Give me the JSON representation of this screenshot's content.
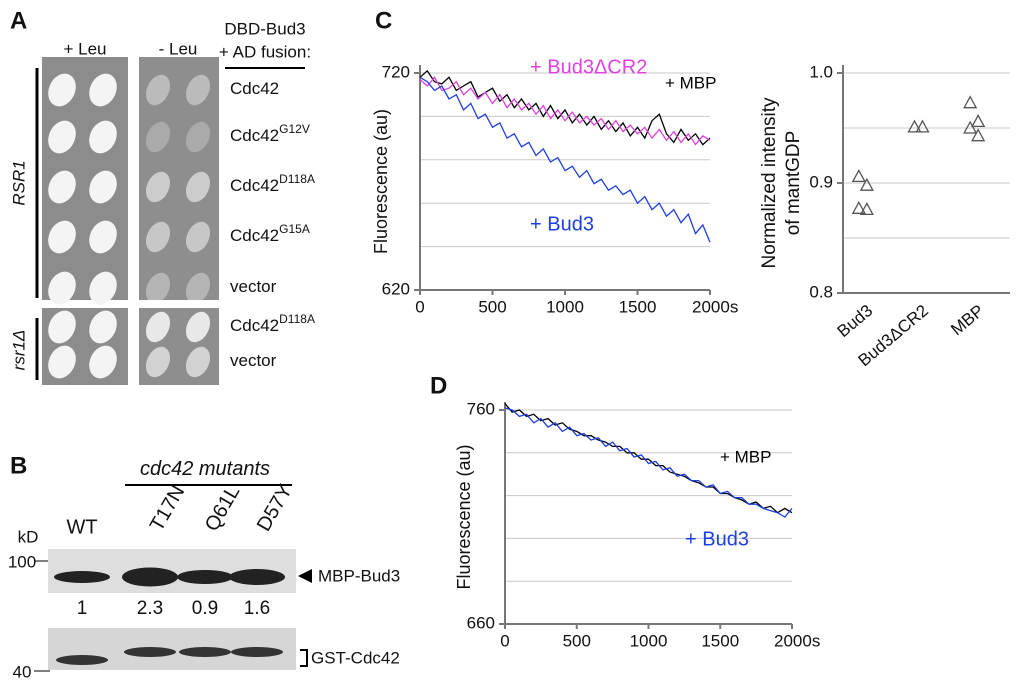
{
  "panels": {
    "A": {
      "label": "A",
      "columns": [
        "+ Leu",
        "- Leu"
      ],
      "header": [
        "DBD-Bud3",
        "+ AD fusion:"
      ],
      "groups": [
        {
          "name": "RSR1",
          "rows": [
            {
              "base": "Cdc42"
            },
            {
              "base": "Cdc42",
              "sup": "G12V"
            },
            {
              "base": "Cdc42",
              "sup": "D118A"
            },
            {
              "base": "Cdc42",
              "sup": "G15A"
            },
            {
              "base": "vector"
            }
          ]
        },
        {
          "name": "rsr1Δ",
          "rows": [
            {
              "base": "Cdc42",
              "sup": "D118A"
            },
            {
              "base": "vector"
            }
          ]
        }
      ]
    },
    "B": {
      "label": "B",
      "title": "cdc42 mutants",
      "lanes": [
        "WT",
        "T17N",
        "Q61L",
        "D57Y"
      ],
      "unit": "kD",
      "markers": [
        "100",
        "40"
      ],
      "ratios": [
        1,
        2.3,
        0.9,
        1.6
      ],
      "bands": [
        "MBP-Bud3",
        "GST-Cdc42"
      ]
    }
  },
  "chart_data": [
    {
      "type": "line",
      "label": "C",
      "y_label": "Fluorescence (au)",
      "x": [
        0,
        50,
        100,
        150,
        200,
        250,
        300,
        350,
        400,
        450,
        500,
        550,
        600,
        650,
        700,
        750,
        800,
        850,
        900,
        950,
        1000,
        1050,
        1100,
        1150,
        1200,
        1250,
        1300,
        1350,
        1400,
        1450,
        1500,
        1550,
        1600,
        1650,
        1700,
        1750,
        1800,
        1850,
        1900,
        1950,
        2000
      ],
      "xlim": [
        0,
        2000
      ],
      "xticks": [
        0,
        500,
        1000,
        1500,
        {
          "value": 2000,
          "label": "2000s"
        }
      ],
      "ylim": [
        620,
        720
      ],
      "yticks": [
        620,
        720
      ],
      "grid": [
        640,
        660,
        680,
        700,
        720
      ],
      "series": [
        {
          "name": "+ MBP",
          "color": "#000000",
          "values": [
            718,
            721,
            716,
            715,
            718,
            712,
            714,
            716,
            709,
            711,
            713,
            707,
            710,
            704,
            708,
            703,
            706,
            700,
            705,
            699,
            703,
            697,
            701,
            696,
            700,
            694,
            698,
            693,
            697,
            691,
            695,
            690,
            698,
            701,
            692,
            688,
            694,
            689,
            692,
            687,
            690
          ]
        },
        {
          "name": "+ Bud3ΔCR2",
          "color": "#e040e0",
          "values": [
            717,
            714,
            718,
            712,
            713,
            716,
            710,
            713,
            708,
            711,
            706,
            710,
            704,
            708,
            703,
            706,
            701,
            705,
            699,
            703,
            698,
            702,
            697,
            700,
            696,
            699,
            694,
            698,
            693,
            696,
            692,
            695,
            690,
            694,
            689,
            693,
            688,
            692,
            687,
            691,
            689
          ]
        },
        {
          "name": "+ Bud3",
          "color": "#1f3fe0",
          "values": [
            718,
            716,
            712,
            714,
            708,
            710,
            703,
            706,
            699,
            701,
            695,
            697,
            690,
            692,
            686,
            688,
            682,
            685,
            679,
            681,
            675,
            677,
            672,
            675,
            669,
            671,
            666,
            668,
            664,
            666,
            660,
            663,
            657,
            660,
            654,
            657,
            651,
            655,
            646,
            650,
            642
          ]
        }
      ]
    },
    {
      "type": "scatter",
      "y_label": [
        "Normalized intensity",
        "of mantGDP"
      ],
      "ylim": [
        0.8,
        1.0
      ],
      "yticks": [
        0.8,
        0.9,
        {
          "value": 1.0,
          "label": "1.0"
        }
      ],
      "grid": [
        0.85,
        0.9,
        0.95,
        1.0
      ],
      "color": "#555555",
      "groups": [
        {
          "category": "Bud3",
          "values": [
            0.906,
            0.898,
            0.877,
            0.876
          ]
        },
        {
          "category": "Bud3ΔCR2",
          "values": [
            0.951,
            0.951
          ]
        },
        {
          "category": "MBP",
          "values": [
            0.973,
            0.956,
            0.95,
            0.943
          ]
        }
      ]
    },
    {
      "type": "line",
      "label": "D",
      "y_label": "Fluorescence (au)",
      "x": [
        0,
        50,
        100,
        150,
        200,
        250,
        300,
        350,
        400,
        450,
        500,
        550,
        600,
        650,
        700,
        750,
        800,
        850,
        900,
        950,
        1000,
        1050,
        1100,
        1150,
        1200,
        1250,
        1300,
        1350,
        1400,
        1450,
        1500,
        1550,
        1600,
        1650,
        1700,
        1750,
        1800,
        1850,
        1900,
        1950,
        2000
      ],
      "xlim": [
        0,
        2000
      ],
      "xticks": [
        0,
        500,
        1000,
        1500,
        {
          "value": 2000,
          "label": "2000s"
        }
      ],
      "ylim": [
        660,
        760
      ],
      "yticks": [
        660,
        760
      ],
      "grid": [
        680,
        700,
        720,
        740,
        760
      ],
      "series": [
        {
          "name": "+ MBP",
          "color": "#000000",
          "values": [
            763,
            759,
            760,
            757,
            758,
            755,
            756,
            753,
            754,
            751,
            750,
            748,
            748,
            746,
            745,
            743,
            743,
            740,
            740,
            737,
            737,
            734,
            734,
            731,
            730,
            729,
            727,
            726,
            724,
            724,
            721,
            721,
            719,
            718,
            716,
            717,
            714,
            715,
            712,
            714,
            712
          ]
        },
        {
          "name": "+ Bud3",
          "color": "#1f3fe0",
          "values": [
            761,
            760,
            757,
            758,
            754,
            756,
            752,
            754,
            750,
            752,
            748,
            749,
            746,
            747,
            743,
            745,
            741,
            742,
            738,
            739,
            735,
            736,
            732,
            733,
            729,
            730,
            727,
            727,
            724,
            725,
            721,
            722,
            719,
            719,
            716,
            716,
            714,
            713,
            712,
            710,
            714
          ]
        }
      ]
    }
  ]
}
